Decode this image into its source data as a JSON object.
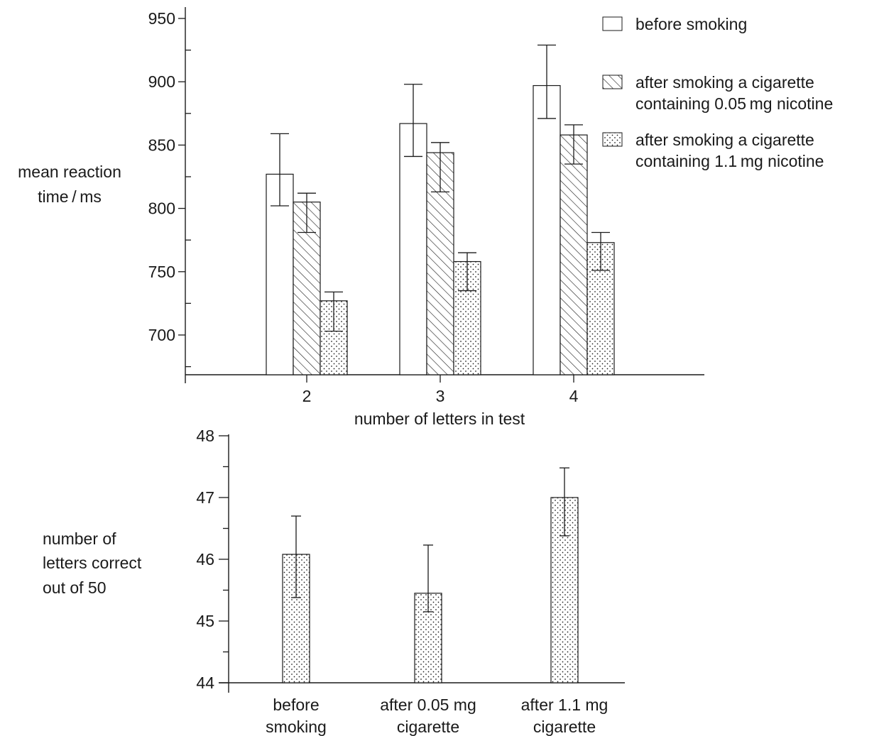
{
  "colors": {
    "ink": "#1a1a1a",
    "background": "#ffffff"
  },
  "chart_data": [
    {
      "type": "bar",
      "xlabel": "number of letters in test",
      "ylabel_lines": [
        "mean reaction",
        "time / ms"
      ],
      "categories": [
        "2",
        "3",
        "4"
      ],
      "ylim": [
        670,
        950
      ],
      "yticks": [
        700,
        750,
        800,
        850,
        900,
        950
      ],
      "grid": false,
      "legend_position": "top-right",
      "series": [
        {
          "name": "before smoking",
          "name_lines": [
            "before smoking"
          ],
          "pattern": "plain",
          "values": [
            827,
            867,
            897
          ],
          "err_low": [
            802,
            841,
            871
          ],
          "err_high": [
            859,
            898,
            929
          ]
        },
        {
          "name": "after smoking a cigarette containing 0.05 mg nicotine",
          "name_lines": [
            "after smoking a cigarette",
            "containing 0.05 mg nicotine"
          ],
          "pattern": "hatch",
          "values": [
            805,
            844,
            858
          ],
          "err_low": [
            781,
            813,
            835
          ],
          "err_high": [
            812,
            852,
            866
          ]
        },
        {
          "name": "after smoking a cigarette containing 1.1 mg nicotine",
          "name_lines": [
            "after smoking a cigarette",
            "containing 1.1 mg nicotine"
          ],
          "pattern": "dots",
          "values": [
            727,
            758,
            773
          ],
          "err_low": [
            703,
            735,
            751
          ],
          "err_high": [
            734,
            765,
            781
          ]
        }
      ]
    },
    {
      "type": "bar",
      "xlabel": "",
      "ylabel_lines": [
        "number of",
        "letters correct",
        "out of 50"
      ],
      "categories": [
        "before smoking",
        "after 0.05 mg cigarette",
        "after 1.1 mg cigarette"
      ],
      "category_lines": [
        [
          "before",
          "smoking"
        ],
        [
          "after 0.05 mg",
          "cigarette"
        ],
        [
          "after 1.1 mg",
          "cigarette"
        ]
      ],
      "ylim": [
        44,
        48
      ],
      "yticks": [
        44,
        45,
        46,
        47,
        48
      ],
      "grid": false,
      "series": [
        {
          "pattern": "dots",
          "values": [
            46.08,
            45.45,
            47.0
          ],
          "err_low": [
            45.38,
            45.15,
            46.38
          ],
          "err_high": [
            46.7,
            46.23,
            47.48
          ]
        }
      ]
    }
  ]
}
